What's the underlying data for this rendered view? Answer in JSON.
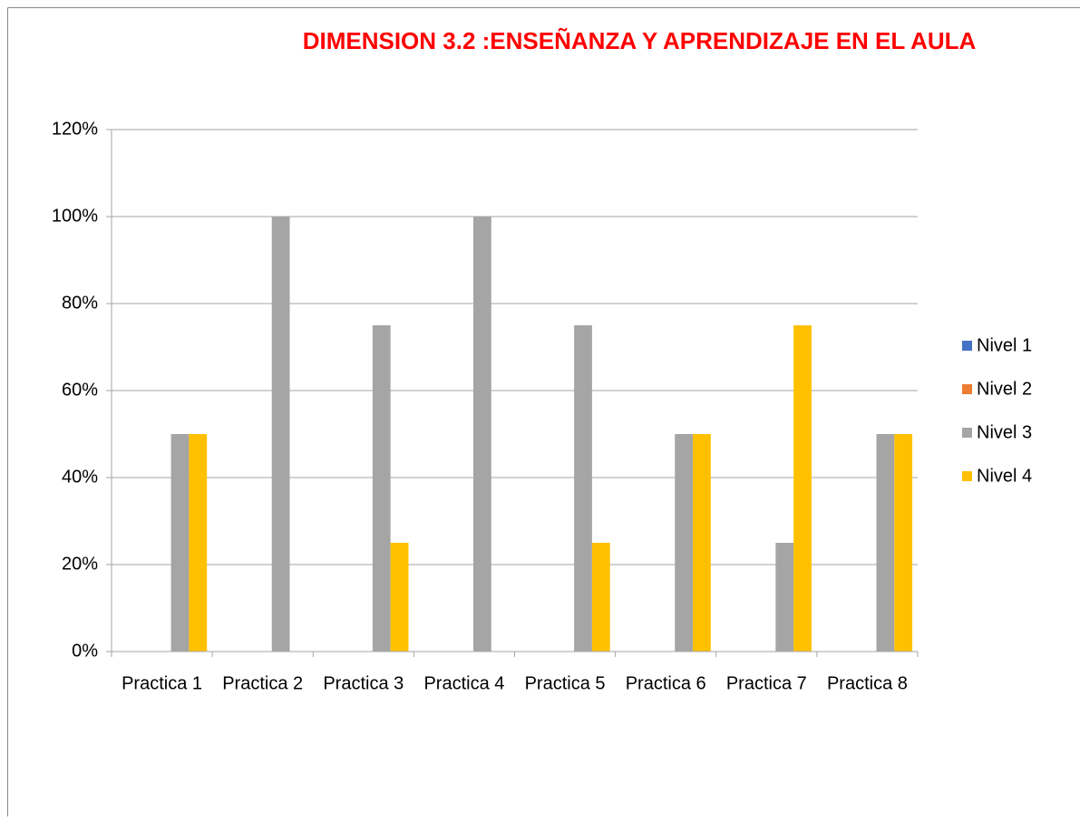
{
  "chart_data": {
    "type": "bar",
    "title": "DIMENSION 3.2 :ENSEÑANZA Y APRENDIZAJE EN EL AULA",
    "categories": [
      "Practica 1",
      "Practica 2",
      "Practica 3",
      "Practica 4",
      "Practica 5",
      "Practica 6",
      "Practica 7",
      "Practica 8"
    ],
    "series": [
      {
        "name": "Nivel 1",
        "color": "#4472c4",
        "values": [
          0,
          0,
          0,
          0,
          0,
          0,
          0,
          0
        ]
      },
      {
        "name": "Nivel 2",
        "color": "#ed7d31",
        "values": [
          0,
          0,
          0,
          0,
          0,
          0,
          0,
          0
        ]
      },
      {
        "name": "Nivel 3",
        "color": "#a5a5a5",
        "values": [
          50,
          100,
          75,
          100,
          75,
          50,
          25,
          50
        ]
      },
      {
        "name": "Nivel 4",
        "color": "#ffc000",
        "values": [
          50,
          0,
          25,
          0,
          25,
          50,
          75,
          50
        ]
      }
    ],
    "ylim": [
      0,
      120
    ],
    "yticks": [
      {
        "value": 0,
        "label": "0%"
      },
      {
        "value": 20,
        "label": "20%"
      },
      {
        "value": 40,
        "label": "40%"
      },
      {
        "value": 60,
        "label": "60%"
      },
      {
        "value": 80,
        "label": "80%"
      },
      {
        "value": 100,
        "label": "100%"
      },
      {
        "value": 120,
        "label": "120%"
      }
    ],
    "grid": true,
    "legend": "right"
  }
}
